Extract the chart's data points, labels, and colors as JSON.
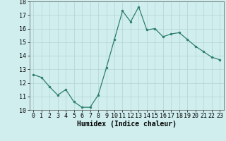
{
  "x": [
    0,
    1,
    2,
    3,
    4,
    5,
    6,
    7,
    8,
    9,
    10,
    11,
    12,
    13,
    14,
    15,
    16,
    17,
    18,
    19,
    20,
    21,
    22,
    23
  ],
  "y": [
    12.6,
    12.4,
    11.7,
    11.1,
    11.5,
    10.6,
    10.2,
    10.2,
    11.1,
    13.1,
    15.2,
    17.3,
    16.5,
    17.6,
    15.9,
    16.0,
    15.4,
    15.6,
    15.7,
    15.2,
    14.7,
    14.3,
    13.9,
    13.7
  ],
  "line_color": "#2e7d6e",
  "marker": "o",
  "marker_size": 2,
  "bg_color": "#d0eeee",
  "grid_color": "#b8d8d8",
  "xlabel": "Humidex (Indice chaleur)",
  "ylim": [
    10,
    18
  ],
  "xlim_min": -0.5,
  "xlim_max": 23.5,
  "yticks": [
    10,
    11,
    12,
    13,
    14,
    15,
    16,
    17,
    18
  ],
  "xticks": [
    0,
    1,
    2,
    3,
    4,
    5,
    6,
    7,
    8,
    9,
    10,
    11,
    12,
    13,
    14,
    15,
    16,
    17,
    18,
    19,
    20,
    21,
    22,
    23
  ],
  "tick_label_fontsize": 6,
  "xlabel_fontsize": 7
}
